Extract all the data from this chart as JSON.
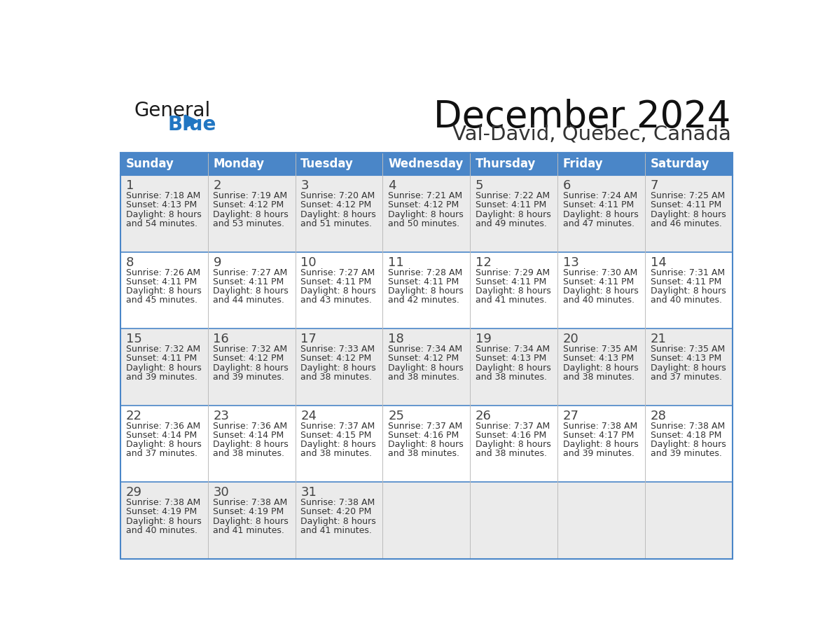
{
  "title": "December 2024",
  "subtitle": "Val-David, Quebec, Canada",
  "header_bg": "#4a86c8",
  "header_text_color": "#FFFFFF",
  "cell_bg_odd": "#EBEBEB",
  "cell_bg_even": "#FFFFFF",
  "days_of_week": [
    "Sunday",
    "Monday",
    "Tuesday",
    "Wednesday",
    "Thursday",
    "Friday",
    "Saturday"
  ],
  "weeks": [
    [
      {
        "day": 1,
        "sunrise": "7:18 AM",
        "sunset": "4:13 PM",
        "daylight": "8 hours and 54 minutes."
      },
      {
        "day": 2,
        "sunrise": "7:19 AM",
        "sunset": "4:12 PM",
        "daylight": "8 hours and 53 minutes."
      },
      {
        "day": 3,
        "sunrise": "7:20 AM",
        "sunset": "4:12 PM",
        "daylight": "8 hours and 51 minutes."
      },
      {
        "day": 4,
        "sunrise": "7:21 AM",
        "sunset": "4:12 PM",
        "daylight": "8 hours and 50 minutes."
      },
      {
        "day": 5,
        "sunrise": "7:22 AM",
        "sunset": "4:11 PM",
        "daylight": "8 hours and 49 minutes."
      },
      {
        "day": 6,
        "sunrise": "7:24 AM",
        "sunset": "4:11 PM",
        "daylight": "8 hours and 47 minutes."
      },
      {
        "day": 7,
        "sunrise": "7:25 AM",
        "sunset": "4:11 PM",
        "daylight": "8 hours and 46 minutes."
      }
    ],
    [
      {
        "day": 8,
        "sunrise": "7:26 AM",
        "sunset": "4:11 PM",
        "daylight": "8 hours and 45 minutes."
      },
      {
        "day": 9,
        "sunrise": "7:27 AM",
        "sunset": "4:11 PM",
        "daylight": "8 hours and 44 minutes."
      },
      {
        "day": 10,
        "sunrise": "7:27 AM",
        "sunset": "4:11 PM",
        "daylight": "8 hours and 43 minutes."
      },
      {
        "day": 11,
        "sunrise": "7:28 AM",
        "sunset": "4:11 PM",
        "daylight": "8 hours and 42 minutes."
      },
      {
        "day": 12,
        "sunrise": "7:29 AM",
        "sunset": "4:11 PM",
        "daylight": "8 hours and 41 minutes."
      },
      {
        "day": 13,
        "sunrise": "7:30 AM",
        "sunset": "4:11 PM",
        "daylight": "8 hours and 40 minutes."
      },
      {
        "day": 14,
        "sunrise": "7:31 AM",
        "sunset": "4:11 PM",
        "daylight": "8 hours and 40 minutes."
      }
    ],
    [
      {
        "day": 15,
        "sunrise": "7:32 AM",
        "sunset": "4:11 PM",
        "daylight": "8 hours and 39 minutes."
      },
      {
        "day": 16,
        "sunrise": "7:32 AM",
        "sunset": "4:12 PM",
        "daylight": "8 hours and 39 minutes."
      },
      {
        "day": 17,
        "sunrise": "7:33 AM",
        "sunset": "4:12 PM",
        "daylight": "8 hours and 38 minutes."
      },
      {
        "day": 18,
        "sunrise": "7:34 AM",
        "sunset": "4:12 PM",
        "daylight": "8 hours and 38 minutes."
      },
      {
        "day": 19,
        "sunrise": "7:34 AM",
        "sunset": "4:13 PM",
        "daylight": "8 hours and 38 minutes."
      },
      {
        "day": 20,
        "sunrise": "7:35 AM",
        "sunset": "4:13 PM",
        "daylight": "8 hours and 38 minutes."
      },
      {
        "day": 21,
        "sunrise": "7:35 AM",
        "sunset": "4:13 PM",
        "daylight": "8 hours and 37 minutes."
      }
    ],
    [
      {
        "day": 22,
        "sunrise": "7:36 AM",
        "sunset": "4:14 PM",
        "daylight": "8 hours and 37 minutes."
      },
      {
        "day": 23,
        "sunrise": "7:36 AM",
        "sunset": "4:14 PM",
        "daylight": "8 hours and 38 minutes."
      },
      {
        "day": 24,
        "sunrise": "7:37 AM",
        "sunset": "4:15 PM",
        "daylight": "8 hours and 38 minutes."
      },
      {
        "day": 25,
        "sunrise": "7:37 AM",
        "sunset": "4:16 PM",
        "daylight": "8 hours and 38 minutes."
      },
      {
        "day": 26,
        "sunrise": "7:37 AM",
        "sunset": "4:16 PM",
        "daylight": "8 hours and 38 minutes."
      },
      {
        "day": 27,
        "sunrise": "7:38 AM",
        "sunset": "4:17 PM",
        "daylight": "8 hours and 39 minutes."
      },
      {
        "day": 28,
        "sunrise": "7:38 AM",
        "sunset": "4:18 PM",
        "daylight": "8 hours and 39 minutes."
      }
    ],
    [
      {
        "day": 29,
        "sunrise": "7:38 AM",
        "sunset": "4:19 PM",
        "daylight": "8 hours and 40 minutes."
      },
      {
        "day": 30,
        "sunrise": "7:38 AM",
        "sunset": "4:19 PM",
        "daylight": "8 hours and 41 minutes."
      },
      {
        "day": 31,
        "sunrise": "7:38 AM",
        "sunset": "4:20 PM",
        "daylight": "8 hours and 41 minutes."
      },
      null,
      null,
      null,
      null
    ]
  ],
  "logo_color_general": "#1a1a1a",
  "logo_color_blue": "#2176C2",
  "logo_triangle_color": "#2176C2",
  "row_separator_color": "#4a86c8",
  "col_separator_color": "#BBBBBB",
  "outer_border_color": "#4a86c8",
  "day_number_color": "#444444",
  "cell_text_color": "#333333",
  "title_color": "#111111",
  "subtitle_color": "#333333"
}
